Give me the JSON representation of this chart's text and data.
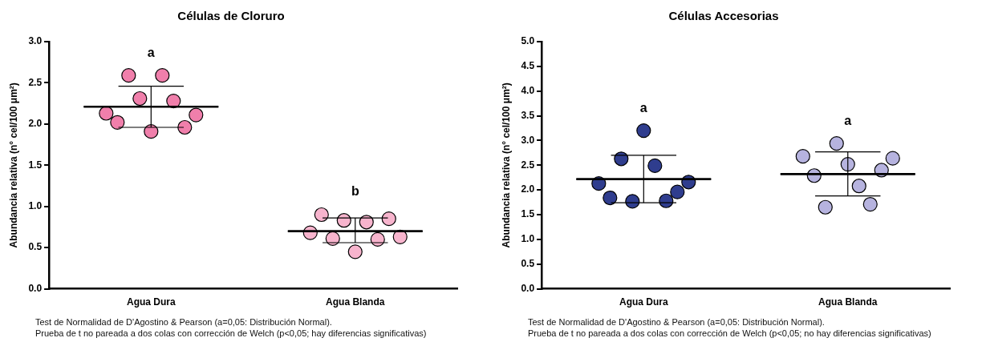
{
  "chart_data": [
    {
      "type": "scatter",
      "title": "Células de Cloruro",
      "ylabel": "Abundancia relativa (n° cel/100 μm²)",
      "categories": [
        "Agua Dura",
        "Agua Blanda"
      ],
      "ylim": [
        0,
        3
      ],
      "yticks": [
        {
          "value": 0,
          "label": "0.0"
        },
        {
          "value": 0.5,
          "label": "0.5"
        },
        {
          "value": 1,
          "label": "1.0"
        },
        {
          "value": 1.5,
          "label": "1.5"
        },
        {
          "value": 2,
          "label": "2.0"
        },
        {
          "value": 2.5,
          "label": "2.5"
        },
        {
          "value": 3,
          "label": "3.0"
        }
      ],
      "marker": "circle",
      "legend": false,
      "series": [
        {
          "color": "#f07fab",
          "x": [
            "Agua Dura",
            "Agua Dura",
            "Agua Dura",
            "Agua Dura",
            "Agua Dura",
            "Agua Dura",
            "Agua Dura",
            "Agua Dura",
            "Agua Dura"
          ],
          "values": [
            2.13,
            2.02,
            2.59,
            2.31,
            1.91,
            2.59,
            2.28,
            1.96,
            2.11
          ]
        },
        {
          "color": "#f7b4cd",
          "x": [
            "Agua Blanda",
            "Agua Blanda",
            "Agua Blanda",
            "Agua Blanda",
            "Agua Blanda",
            "Agua Blanda",
            "Agua Blanda",
            "Agua Blanda",
            "Agua Blanda"
          ],
          "values": [
            0.68,
            0.9,
            0.61,
            0.83,
            0.45,
            0.81,
            0.6,
            0.85,
            0.63
          ]
        },
        {
          "type": "box",
          "color": "#000000",
          "x": [
            "Agua Dura",
            "Agua Blanda"
          ],
          "boxes": [
            {
              "low": 1.96,
              "q1": 2.21,
              "median": 2.21,
              "q3": 2.21,
              "high": 2.46
            },
            {
              "low": 0.56,
              "q1": 0.7,
              "median": 0.7,
              "q3": 0.7,
              "high": 0.86
            }
          ]
        }
      ],
      "annotations": [
        "a",
        "b",
        "Test de Normalidad de D'Agostino & Pearson (a=0,05: Distribución Normal).",
        "Prueba de t no pareada a dos colas con corrección de Welch (p<0,05; hay diferencias significativas)"
      ]
    },
    {
      "type": "scatter",
      "title": "Células Accesorias",
      "ylabel": "Abundancia relativa (n° cel/100 μm²)",
      "categories": [
        "Agua Dura",
        "Agua Blanda"
      ],
      "ylim": [
        0,
        5
      ],
      "yticks": [
        {
          "value": 0,
          "label": "0.0"
        },
        {
          "value": 0.5,
          "label": "0.5"
        },
        {
          "value": 1,
          "label": "1.0"
        },
        {
          "value": 1.5,
          "label": "1.5"
        },
        {
          "value": 2,
          "label": "2.0"
        },
        {
          "value": 2.5,
          "label": "2.5"
        },
        {
          "value": 3,
          "label": "3.0"
        },
        {
          "value": 3.5,
          "label": "3.5"
        },
        {
          "value": 4,
          "label": "4.0"
        },
        {
          "value": 4.5,
          "label": "4.5"
        },
        {
          "value": 5,
          "label": "5.0"
        }
      ],
      "marker": "circle",
      "legend": false,
      "series": [
        {
          "color": "#2f3d8e",
          "x": [
            "Agua Dura",
            "Agua Dura",
            "Agua Dura",
            "Agua Dura",
            "Agua Dura",
            "Agua Dura",
            "Agua Dura",
            "Agua Dura",
            "Agua Dura"
          ],
          "values": [
            2.13,
            1.84,
            2.63,
            1.77,
            3.2,
            2.49,
            1.78,
            1.96,
            2.16
          ]
        },
        {
          "color": "#b6b3df",
          "x": [
            "Agua Blanda",
            "Agua Blanda",
            "Agua Blanda",
            "Agua Blanda",
            "Agua Blanda",
            "Agua Blanda",
            "Agua Blanda",
            "Agua Blanda",
            "Agua Blanda"
          ],
          "values": [
            2.68,
            2.29,
            1.65,
            2.94,
            2.52,
            2.08,
            1.71,
            2.4,
            2.64
          ]
        },
        {
          "type": "box",
          "color": "#000000",
          "x": [
            "Agua Dura",
            "Agua Blanda"
          ],
          "boxes": [
            {
              "low": 1.74,
              "q1": 2.22,
              "median": 2.22,
              "q3": 2.22,
              "high": 2.7
            },
            {
              "low": 1.88,
              "q1": 2.32,
              "median": 2.32,
              "q3": 2.32,
              "high": 2.77
            }
          ]
        }
      ],
      "annotations": [
        "a",
        "a",
        "Test de Normalidad de D'Agostino & Pearson (a=0,05: Distribución Normal).",
        "Prueba de t no pareada a dos colas con corrección de Welch (p<0,05; no hay diferencias significativas)"
      ]
    }
  ]
}
